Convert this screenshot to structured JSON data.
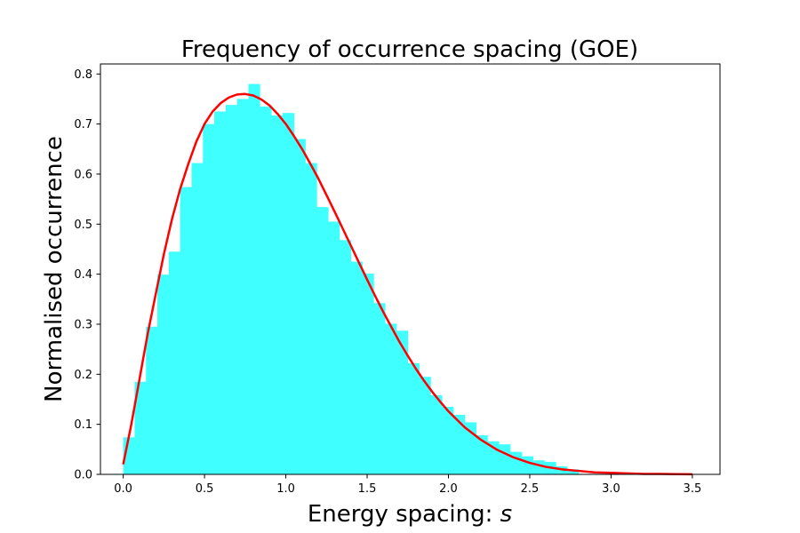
{
  "chart_data": {
    "type": "bar",
    "title": "Frequency of occurrence spacing (GOE)",
    "xlabel_prefix": "Energy spacing: ",
    "xlabel_symbol": "s",
    "ylabel": "Normalised occurrence",
    "xlim": [
      -0.14,
      3.67
    ],
    "ylim": [
      0,
      0.82
    ],
    "grid": false,
    "bar_color": "#40ffff",
    "curve_color": "#ff0000",
    "x_ticks": [
      {
        "v": 0.0,
        "label": "0.0"
      },
      {
        "v": 0.5,
        "label": "0.5"
      },
      {
        "v": 1.0,
        "label": "1.0"
      },
      {
        "v": 1.5,
        "label": "1.5"
      },
      {
        "v": 2.0,
        "label": "2.0"
      },
      {
        "v": 2.5,
        "label": "2.5"
      },
      {
        "v": 3.0,
        "label": "3.0"
      },
      {
        "v": 3.5,
        "label": "3.5"
      }
    ],
    "y_ticks": [
      {
        "v": 0.0,
        "label": "0.0"
      },
      {
        "v": 0.1,
        "label": "0.1"
      },
      {
        "v": 0.2,
        "label": "0.2"
      },
      {
        "v": 0.3,
        "label": "0.3"
      },
      {
        "v": 0.4,
        "label": "0.4"
      },
      {
        "v": 0.5,
        "label": "0.5"
      },
      {
        "v": 0.6,
        "label": "0.6"
      },
      {
        "v": 0.7,
        "label": "0.7"
      },
      {
        "v": 0.8,
        "label": "0.8"
      }
    ],
    "histogram": {
      "bin_edges": [
        0.0,
        0.07,
        0.14,
        0.21,
        0.28,
        0.35,
        0.42,
        0.49,
        0.56,
        0.63,
        0.7,
        0.77,
        0.84,
        0.91,
        0.98,
        1.05,
        1.12,
        1.19,
        1.26,
        1.33,
        1.4,
        1.47,
        1.54,
        1.61,
        1.68,
        1.75,
        1.82,
        1.89,
        1.96,
        2.03,
        2.1,
        2.17,
        2.24,
        2.31,
        2.38,
        2.45,
        2.52,
        2.59,
        2.66,
        2.73,
        2.8
      ],
      "values": [
        0.074,
        0.185,
        0.295,
        0.399,
        0.445,
        0.574,
        0.622,
        0.7,
        0.725,
        0.738,
        0.75,
        0.78,
        0.735,
        0.717,
        0.722,
        0.67,
        0.622,
        0.534,
        0.505,
        0.468,
        0.425,
        0.401,
        0.342,
        0.301,
        0.287,
        0.222,
        0.195,
        0.158,
        0.135,
        0.119,
        0.104,
        0.078,
        0.066,
        0.06,
        0.045,
        0.036,
        0.028,
        0.025,
        0.016,
        0.01
      ]
    },
    "curve": {
      "name": "",
      "x": [
        0.0,
        0.05,
        0.1,
        0.15,
        0.2,
        0.25,
        0.3,
        0.35,
        0.4,
        0.45,
        0.5,
        0.55,
        0.6,
        0.65,
        0.7,
        0.75,
        0.8,
        0.85,
        0.9,
        0.95,
        1.0,
        1.05,
        1.1,
        1.15,
        1.2,
        1.25,
        1.3,
        1.35,
        1.4,
        1.45,
        1.5,
        1.55,
        1.6,
        1.65,
        1.7,
        1.75,
        1.8,
        1.85,
        1.9,
        1.95,
        2.0,
        2.1,
        2.2,
        2.3,
        2.4,
        2.5,
        2.6,
        2.7,
        2.8,
        2.9,
        3.0,
        3.1,
        3.2,
        3.3,
        3.4,
        3.5
      ],
      "y": [
        0.02,
        0.1,
        0.19,
        0.28,
        0.36,
        0.44,
        0.51,
        0.57,
        0.62,
        0.665,
        0.7,
        0.725,
        0.742,
        0.753,
        0.759,
        0.76,
        0.757,
        0.749,
        0.737,
        0.72,
        0.7,
        0.676,
        0.65,
        0.621,
        0.591,
        0.558,
        0.525,
        0.491,
        0.457,
        0.423,
        0.389,
        0.356,
        0.324,
        0.294,
        0.264,
        0.237,
        0.211,
        0.187,
        0.165,
        0.145,
        0.126,
        0.094,
        0.069,
        0.049,
        0.034,
        0.023,
        0.015,
        0.01,
        0.007,
        0.004,
        0.003,
        0.002,
        0.001,
        0.0008,
        0.0005,
        0.0003
      ]
    }
  }
}
